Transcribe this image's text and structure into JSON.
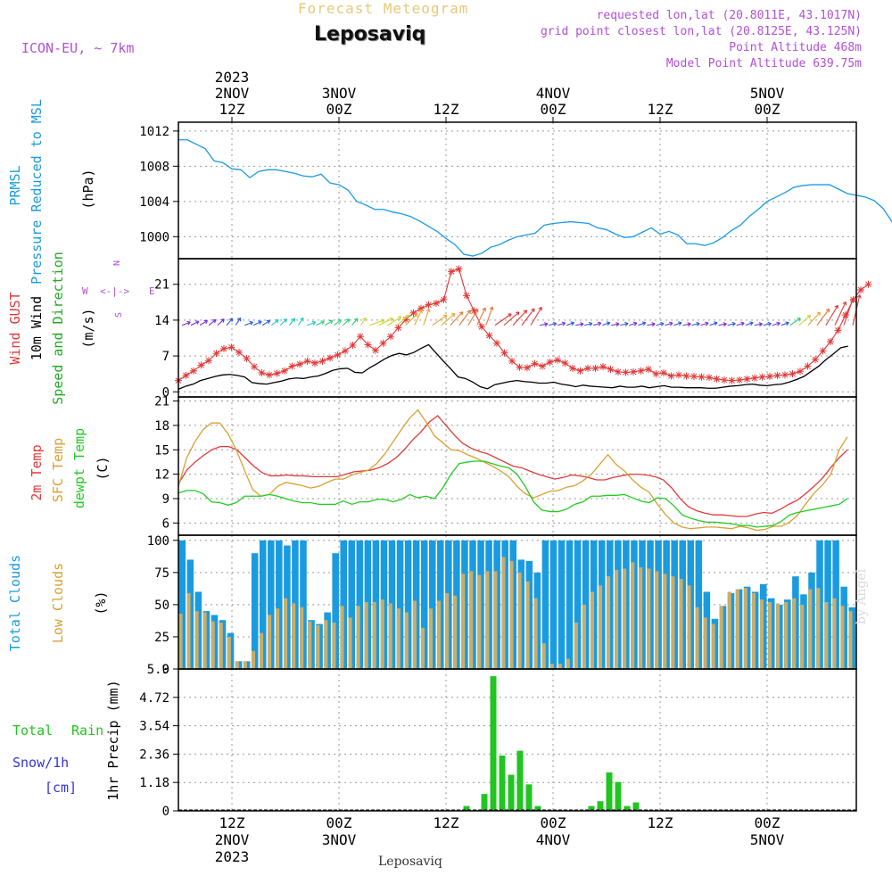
{
  "header": {
    "product": "Forecast Meteogram",
    "location": "Leposaviq",
    "model": "ICON-EU, ~ 7km",
    "requested": "requested lon,lat (20.8011E, 43.1017N)",
    "grid_point": "grid point closest lon,lat (20.8125E, 43.125N)",
    "point_altitude": "Point Altitude 468m",
    "model_altitude": "Model Point Altitude 639.75m",
    "footer_location": "Leposaviq",
    "credit": "by Angel"
  },
  "colors": {
    "pressure": "#1a9be0",
    "gust": "#e03a3a",
    "wind": "#000000",
    "direction": "#22aa22",
    "temp": "#e03a3a",
    "sfc": "#d9a032",
    "dew": "#22cc22",
    "total_clouds": "#1a9be0",
    "low_clouds": "#c9ad6a",
    "rain": "#22c422",
    "snow": "#3333dd",
    "label_purple": "#b24fd6",
    "title_orange": "#e8c87a"
  },
  "time_axis": {
    "top_labels": [
      {
        "l1": "2023",
        "l2": "2NOV",
        "l3": "12Z",
        "h": 12
      },
      {
        "l1": "",
        "l2": "3NOV",
        "l3": "00Z",
        "h": 24
      },
      {
        "l1": "",
        "l2": "",
        "l3": "12Z",
        "h": 36
      },
      {
        "l1": "",
        "l2": "4NOV",
        "l3": "00Z",
        "h": 48
      },
      {
        "l1": "",
        "l2": "",
        "l3": "12Z",
        "h": 60
      },
      {
        "l1": "",
        "l2": "5NOV",
        "l3": "00Z",
        "h": 72
      }
    ],
    "bottom_labels": [
      {
        "l1": "12Z",
        "l2": "2NOV",
        "l3": "2023",
        "h": 12
      },
      {
        "l1": "00Z",
        "l2": "3NOV",
        "l3": "",
        "h": 24
      },
      {
        "l1": "12Z",
        "l2": "",
        "l3": "",
        "h": 36
      },
      {
        "l1": "00Z",
        "l2": "4NOV",
        "l3": "",
        "h": 48
      },
      {
        "l1": "12Z",
        "l2": "",
        "l3": "",
        "h": 60
      },
      {
        "l1": "00Z",
        "l2": "5NOV",
        "l3": "",
        "h": 72
      }
    ],
    "start_hour": 6,
    "end_hour": 82
  },
  "chart_data": [
    {
      "type": "line",
      "id": "pressure",
      "title": "PRMSL Pressure Reduced to MSL",
      "ylabel": "(hPa)",
      "label_lines": [
        "PRMSL",
        "Pressure Reduced to MSL"
      ],
      "yticks": [
        "1012",
        "1008",
        "1004",
        "1000"
      ],
      "ytick_values": [
        1012,
        1008,
        1004,
        1000
      ],
      "ylim": [
        997.5,
        1013
      ],
      "x_hours_start": 6,
      "series": [
        {
          "name": "PRMSL",
          "values": [
            1011,
            1011,
            1010.5,
            1010,
            1008.6,
            1008.4,
            1007.7,
            1007.6,
            1006.7,
            1007.4,
            1007.6,
            1007.6,
            1007.4,
            1007.2,
            1006.9,
            1006.8,
            1007.1,
            1006.1,
            1005.9,
            1005.3,
            1004,
            1003.6,
            1003.1,
            1003.1,
            1002.8,
            1002.6,
            1002.3,
            1001.8,
            1001.2,
            1000.6,
            999.8,
            999.1,
            998,
            997.8,
            998.1,
            998.8,
            999.1,
            999.6,
            1000,
            1000.2,
            1000.4,
            1001.3,
            1001.5,
            1001.6,
            1001.7,
            1001.6,
            1001.5,
            1001,
            1000.8,
            1000.3,
            999.9,
            1000,
            1000.5,
            1001,
            1000.3,
            1000.6,
            1000.2,
            999.2,
            999.2,
            999,
            999.3,
            999.9,
            1000.7,
            1001.3,
            1002.3,
            1003.1,
            1004,
            1004.5,
            1005,
            1005.6,
            1005.8,
            1005.9,
            1005.9,
            1005.9,
            1005.4,
            1004.9,
            1004.7,
            1004.5,
            1004.1,
            1003.2,
            1001.7,
            1000.2
          ]
        }
      ]
    },
    {
      "type": "line",
      "id": "wind",
      "title": "Wind GUST / 10m Wind Speed and Direction",
      "ylabel": "(m/s)",
      "label_lines": [
        "Wind GUST",
        "10m Wind",
        "Speed and Direction"
      ],
      "compass": {
        "n": "N",
        "s": "S",
        "w": "W",
        "e": "E",
        "arrows": "<-|->"
      },
      "yticks": [
        "21",
        "14",
        "7",
        "0"
      ],
      "ytick_values": [
        21,
        14,
        7,
        0
      ],
      "ylim": [
        -1,
        26
      ],
      "x_hours_start": 6,
      "series": [
        {
          "name": "Wind GUST",
          "values": [
            2.2,
            3.2,
            4.1,
            5.2,
            6.1,
            7.5,
            8.4,
            8.7,
            7.7,
            6.5,
            4.9,
            3.7,
            3.3,
            3.6,
            4.1,
            5,
            5.4,
            6,
            5.6,
            6,
            6.6,
            7.2,
            8,
            9.1,
            10.8,
            9.2,
            8.1,
            9.5,
            10.8,
            12.5,
            14.1,
            15.4,
            16.3,
            17,
            17.3,
            18,
            23.5,
            24,
            18.8,
            15.8,
            12.7,
            11,
            9.5,
            7.6,
            6,
            4.8,
            4.7,
            5.5,
            5,
            5.8,
            6.2,
            5.6,
            4.6,
            4.1,
            4.6,
            4.6,
            4.9,
            4.4,
            3.9,
            3.8,
            3.9,
            4.1,
            4.4,
            3.5,
            3.7,
            3.1,
            3.3,
            3.1,
            3,
            2.9,
            2.8,
            2.5,
            2.3,
            2.2,
            2.3,
            2.5,
            2.7,
            2.9,
            3,
            3.2,
            3.3,
            3.5,
            4,
            5,
            6.3,
            8,
            9.8,
            12,
            15,
            18,
            19.9,
            21
          ]
        },
        {
          "name": "10m Wind",
          "values": [
            0.5,
            1.1,
            1.5,
            2.2,
            2.6,
            3,
            3.3,
            3.4,
            3.2,
            2.9,
            1.8,
            1.6,
            1.5,
            1.8,
            2.1,
            2.5,
            2.7,
            2.6,
            2.9,
            3.1,
            3.6,
            4.2,
            4.5,
            4.6,
            3.8,
            3.7,
            4.7,
            5.5,
            6.4,
            7.1,
            7.5,
            7.2,
            7.7,
            8.5,
            9.2,
            7.6,
            6,
            4.5,
            2.9,
            2.6,
            1.9,
            1,
            0.6,
            1.4,
            1.7,
            2,
            2.2,
            2,
            1.9,
            1.7,
            1.7,
            1.9,
            1.5,
            1.3,
            1,
            1.3,
            1.1,
            1,
            0.9,
            0.8,
            1.1,
            0.9,
            0.9,
            1.1,
            0.8,
            1,
            1.2,
            0.9,
            0.9,
            0.8,
            0.8,
            0.8,
            0.7,
            0.7,
            0.9,
            1.1,
            1.2,
            1.4,
            1.5,
            1.3,
            1.2,
            1.4,
            1.5,
            1.9,
            2.4,
            3,
            4,
            5,
            6.3,
            7.4,
            8.6,
            8.9
          ]
        }
      ],
      "direction_arrows": {
        "level": 13,
        "colors": [
          "#7a2fd6",
          "#2a5ae0",
          "#1ec8c8",
          "#2ed07a",
          "#c8d62e",
          "#e8a830",
          "#e07a3a",
          "#e03a3a"
        ]
      }
    },
    {
      "type": "line",
      "id": "temperature",
      "title": "2m Temp / SFC Temp / dewpt Temp",
      "ylabel": "(C)",
      "label_lines": [
        "2m Temp",
        "SFC Temp",
        "dewpt Temp"
      ],
      "yticks": [
        "21",
        "18",
        "15",
        "12",
        "9",
        "6"
      ],
      "ytick_values": [
        21,
        18,
        15,
        12,
        9,
        6
      ],
      "ylim": [
        4.5,
        21.5
      ],
      "x_hours_start": 6,
      "series": [
        {
          "name": "2m Temp",
          "values": [
            10.8,
            12.5,
            13.5,
            14.3,
            15,
            15.4,
            15.4,
            15,
            14,
            13,
            12.2,
            11.8,
            11.8,
            11.9,
            11.8,
            11.8,
            11.7,
            11.7,
            11.7,
            11.7,
            12,
            12.3,
            12.4,
            12.5,
            12.8,
            13.3,
            14,
            15,
            16.2,
            17.2,
            18.4,
            19.2,
            18,
            16.8,
            15.8,
            15.2,
            14.8,
            14.5,
            14,
            13.5,
            13,
            12.8,
            12.4,
            12,
            11.7,
            11.4,
            11.6,
            11.9,
            11.8,
            11.6,
            11.3,
            11.3,
            11.6,
            11.8,
            12,
            12,
            11.9,
            11.7,
            11.3,
            10.3,
            9,
            8,
            7.5,
            7.2,
            7,
            7,
            6.9,
            6.8,
            6.8,
            7.1,
            7.3,
            7.2,
            7.7,
            8.3,
            8.8,
            9.6,
            10.5,
            11.5,
            12.8,
            14,
            15
          ]
        },
        {
          "name": "SFC Temp",
          "values": [
            10.5,
            14,
            16,
            17.5,
            18.3,
            18.3,
            17,
            15,
            12.5,
            10.1,
            9.3,
            9.5,
            10.5,
            11,
            10.8,
            10.6,
            10.3,
            10.5,
            11,
            11.4,
            11.4,
            11.9,
            12.2,
            12.5,
            13.3,
            14.5,
            16,
            17.5,
            18.9,
            19.9,
            18.4,
            16.7,
            15.9,
            15,
            14.9,
            14.4,
            14,
            13.5,
            13,
            12.4,
            11.7,
            10.5,
            9.6,
            9.1,
            9.5,
            9.9,
            10,
            10.4,
            10.6,
            11.2,
            12,
            13.2,
            14.4,
            13.2,
            12.4,
            11.3,
            10.4,
            9.8,
            8.3,
            7,
            6,
            5.5,
            5.3,
            5.4,
            5.5,
            5.5,
            5.4,
            5.3,
            5.6,
            5.4,
            5.1,
            5.2,
            5.6,
            5.6,
            6.1,
            7,
            8.4,
            9.7,
            10.7,
            12,
            15,
            16.6
          ]
        },
        {
          "name": "dewpt Temp",
          "values": [
            9.7,
            10,
            10,
            9.6,
            8.6,
            8.5,
            8.2,
            8.5,
            9.3,
            9.3,
            9.3,
            9.5,
            9.3,
            9,
            8.7,
            8.5,
            8.5,
            8.3,
            8.3,
            8.3,
            8.7,
            8.3,
            8.6,
            8.6,
            8.9,
            8.9,
            8.6,
            8.9,
            9.5,
            9.1,
            9.3,
            9,
            10.3,
            12,
            13.3,
            13.5,
            13.6,
            13.6,
            13.3,
            13,
            12.8,
            12,
            10.5,
            8.6,
            7.6,
            7.4,
            7.4,
            7.7,
            8.3,
            8.6,
            9.3,
            9.3,
            9.4,
            9.4,
            9.5,
            9.1,
            8.7,
            8.5,
            9.1,
            9,
            8.1,
            7,
            6.6,
            6.3,
            6.1,
            6.1,
            6,
            5.9,
            5.7,
            5.7,
            5.5,
            5.6,
            5.7,
            6.2,
            7,
            7.3,
            7.5,
            7.7,
            7.9,
            8.1,
            8.3,
            9
          ]
        }
      ]
    },
    {
      "type": "bar",
      "id": "clouds",
      "title": "Total Clouds / Low Clouds",
      "ylabel": "(%)",
      "label_lines": [
        "Total Clouds",
        "Low Clouds"
      ],
      "yticks": [
        "100",
        "75",
        "50",
        "25",
        "0"
      ],
      "ytick_values": [
        100,
        75,
        50,
        25,
        0
      ],
      "ylim": [
        0,
        104
      ],
      "x_hours_start": 6,
      "series": [
        {
          "name": "Total Clouds",
          "values": [
            100,
            85,
            60,
            45,
            42,
            38,
            28,
            6,
            6,
            90,
            100,
            100,
            100,
            96,
            100,
            100,
            38,
            35,
            44,
            90,
            100,
            100,
            100,
            100,
            100,
            100,
            100,
            100,
            100,
            100,
            100,
            100,
            100,
            100,
            100,
            100,
            100,
            100,
            100,
            100,
            100,
            100,
            85,
            84,
            75,
            100,
            100,
            100,
            100,
            100,
            100,
            100,
            100,
            100,
            100,
            100,
            100,
            100,
            100,
            100,
            100,
            100,
            100,
            100,
            100,
            60,
            39,
            49,
            59,
            62,
            64,
            60,
            66,
            55,
            50,
            54,
            72,
            58,
            75,
            100,
            100,
            100,
            64,
            48
          ]
        },
        {
          "name": "Low Clouds",
          "values": [
            43,
            59,
            45,
            44,
            37,
            36,
            25,
            6,
            6,
            14,
            28,
            42,
            47,
            55,
            51,
            48,
            37,
            34,
            38,
            36,
            49,
            40,
            49,
            52,
            52,
            54,
            51,
            47,
            44,
            53,
            32,
            47,
            53,
            59,
            57,
            74,
            76,
            73,
            76,
            76,
            87,
            84,
            75,
            68,
            55,
            20,
            4,
            4,
            8,
            36,
            50,
            60,
            65,
            72,
            77,
            78,
            83,
            79,
            78,
            76,
            74,
            72,
            70,
            65,
            48,
            40,
            35,
            49,
            60,
            62,
            63,
            59,
            54,
            52,
            51,
            52,
            55,
            50,
            62,
            63,
            52,
            55,
            49,
            45
          ]
        }
      ]
    },
    {
      "type": "bar",
      "id": "precip",
      "title": "1hr Precip (mm)",
      "ylabel": "1hr Precip (mm)",
      "label_lines": [
        "Total",
        "Rain",
        "Snow/1h",
        "[cm]"
      ],
      "yticks": [
        "5.9",
        "4.72",
        "3.54",
        "2.36",
        "1.18",
        "0"
      ],
      "ytick_values": [
        5.9,
        4.72,
        3.54,
        2.36,
        1.18,
        0
      ],
      "ylim": [
        0,
        5.9
      ],
      "x_hours_start": 38,
      "series": [
        {
          "name": "Total Rain",
          "values": [
            0.2,
            0,
            0.7,
            5.6,
            2.3,
            1.5,
            2.5,
            1.1,
            0.2,
            0,
            0,
            0,
            0,
            0,
            0.2,
            0.4,
            1.6,
            1.2,
            0.2,
            0.35
          ]
        }
      ]
    }
  ]
}
